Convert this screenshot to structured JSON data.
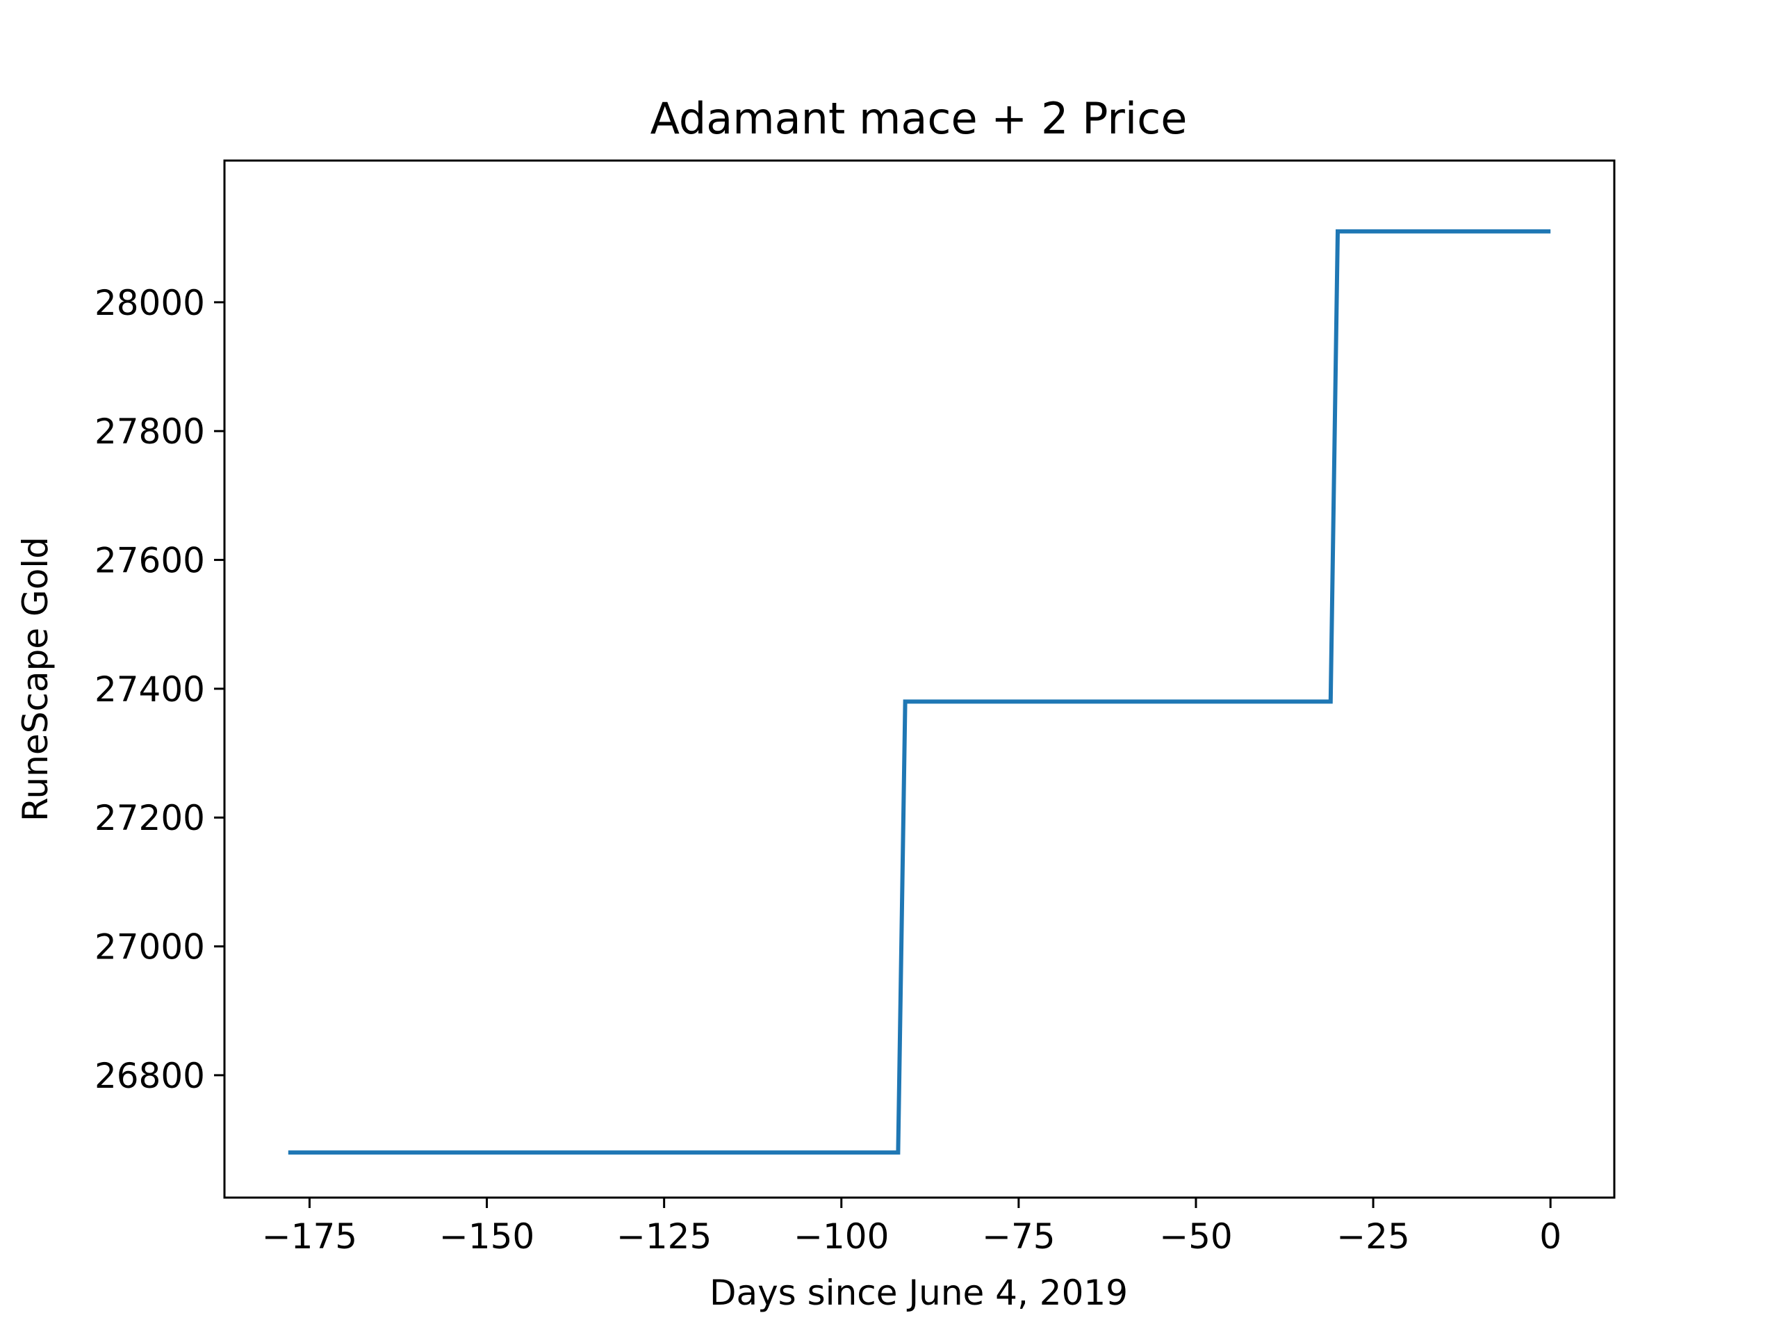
{
  "chart_data": {
    "type": "line",
    "title": "Adamant mace + 2 Price",
    "xlabel": "Days since June 4, 2019",
    "ylabel": "RuneScape Gold",
    "xlim": [
      -187,
      9
    ],
    "ylim": [
      26610,
      28220
    ],
    "x_ticks": [
      -175,
      -150,
      -125,
      -100,
      -75,
      -50,
      -25,
      0
    ],
    "x_tick_labels": [
      "−175",
      "−150",
      "−125",
      "−100",
      "−75",
      "−50",
      "−25",
      "0"
    ],
    "y_ticks": [
      26800,
      27000,
      27200,
      27400,
      27600,
      27800,
      28000
    ],
    "y_tick_labels": [
      "26800",
      "27000",
      "27200",
      "27400",
      "27600",
      "27800",
      "28000"
    ],
    "grid": false,
    "series": [
      {
        "color": "#1f77b4",
        "x": [
          -178,
          -92,
          -91,
          -31,
          -30,
          0
        ],
        "y": [
          26680,
          26680,
          27380,
          27380,
          28110,
          28110
        ]
      }
    ]
  }
}
